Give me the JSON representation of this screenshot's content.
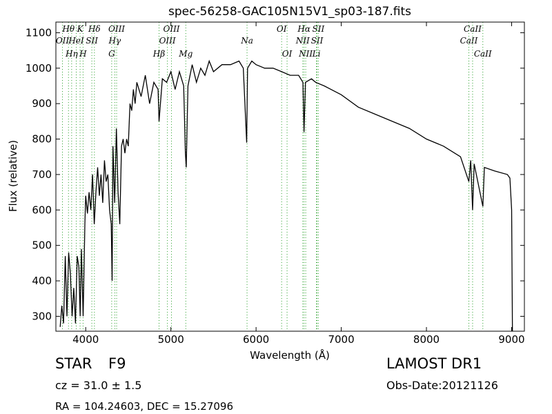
{
  "chart_data": {
    "type": "line",
    "title": "spec-56258-GAC105N15V1_sp03-187.fits",
    "x_label": "Wavelength (Å)",
    "y_label": "Flux (relative)",
    "xlim": [
      3650,
      9150
    ],
    "ylim": [
      258,
      1130
    ],
    "xticks": [
      4000,
      5000,
      6000,
      7000,
      8000,
      9000
    ],
    "yticks": [
      300,
      400,
      500,
      600,
      700,
      800,
      900,
      1000,
      1100
    ],
    "color": "#000000",
    "line_color": "#2ca02c",
    "x": [
      3700,
      3720,
      3740,
      3760,
      3780,
      3800,
      3820,
      3840,
      3860,
      3880,
      3900,
      3920,
      3935,
      3950,
      3970,
      3990,
      4000,
      4020,
      4040,
      4060,
      4080,
      4100,
      4120,
      4140,
      4160,
      4180,
      4200,
      4220,
      4240,
      4260,
      4280,
      4300,
      4310,
      4320,
      4340,
      4360,
      4380,
      4400,
      4420,
      4440,
      4460,
      4480,
      4500,
      4520,
      4540,
      4560,
      4580,
      4600,
      4650,
      4700,
      4750,
      4800,
      4850,
      4861,
      4900,
      4950,
      5000,
      5050,
      5100,
      5150,
      5170,
      5180,
      5200,
      5250,
      5300,
      5350,
      5400,
      5450,
      5500,
      5600,
      5700,
      5800,
      5850,
      5890,
      5900,
      5950,
      6000,
      6100,
      6200,
      6300,
      6400,
      6500,
      6550,
      6563,
      6580,
      6650,
      6700,
      6800,
      7000,
      7200,
      7400,
      7600,
      7800,
      8000,
      8200,
      8400,
      8498,
      8520,
      8542,
      8560,
      8662,
      8680,
      8800,
      8950,
      8980,
      9000,
      9010
    ],
    "values": [
      270,
      330,
      280,
      470,
      300,
      480,
      420,
      300,
      380,
      280,
      470,
      440,
      300,
      490,
      300,
      560,
      640,
      590,
      650,
      600,
      700,
      560,
      650,
      720,
      640,
      700,
      620,
      740,
      680,
      700,
      600,
      560,
      400,
      780,
      620,
      830,
      650,
      560,
      780,
      800,
      760,
      800,
      780,
      900,
      880,
      940,
      900,
      960,
      920,
      980,
      900,
      960,
      940,
      850,
      970,
      960,
      990,
      940,
      990,
      950,
      760,
      720,
      950,
      1010,
      960,
      1000,
      980,
      1020,
      990,
      1010,
      1010,
      1020,
      1000,
      790,
      1000,
      1020,
      1010,
      1000,
      1000,
      990,
      980,
      980,
      960,
      820,
      960,
      970,
      960,
      950,
      925,
      890,
      870,
      850,
      830,
      800,
      780,
      750,
      680,
      740,
      600,
      730,
      610,
      720,
      710,
      700,
      690,
      600,
      250
    ],
    "spectral_lines": [
      {
        "label": "OII",
        "wavelength": 3727
      },
      {
        "label": "Hθ",
        "wavelength": 3798
      },
      {
        "label": "Hη",
        "wavelength": 3835
      },
      {
        "label": "HeI",
        "wavelength": 3889
      },
      {
        "label": "K",
        "wavelength": 3934
      },
      {
        "label": "H",
        "wavelength": 3969
      },
      {
        "label": "SII",
        "wavelength": 4072
      },
      {
        "label": "Hδ",
        "wavelength": 4102
      },
      {
        "label": "G",
        "wavelength": 4305
      },
      {
        "label": "Hγ",
        "wavelength": 4341
      },
      {
        "label": "OIII",
        "wavelength": 4363
      },
      {
        "label": "Hβ",
        "wavelength": 4861
      },
      {
        "label": "OIII",
        "wavelength": 4959
      },
      {
        "label": "OIII",
        "wavelength": 5007
      },
      {
        "label": "Mg",
        "wavelength": 5175
      },
      {
        "label": "Na",
        "wavelength": 5894
      },
      {
        "label": "OI",
        "wavelength": 6300
      },
      {
        "label": "OI",
        "wavelength": 6364
      },
      {
        "label": "NII",
        "wavelength": 6548
      },
      {
        "label": "Hα",
        "wavelength": 6563
      },
      {
        "label": "NII",
        "wavelength": 6583
      },
      {
        "label": "SII",
        "wavelength": 6716
      },
      {
        "label": "SII",
        "wavelength": 6731
      },
      {
        "label": "Li",
        "wavelength": 6708
      },
      {
        "label": "CaII",
        "wavelength": 8498
      },
      {
        "label": "CaII",
        "wavelength": 8542
      },
      {
        "label": "CaII",
        "wavelength": 8662
      }
    ],
    "annotations": {
      "class": "STAR",
      "subclass": "F9",
      "survey": "LAMOST DR1",
      "redshift": "cz = 31.0 ± 1.5",
      "obs_date": "Obs-Date:20121126",
      "coordinates": "RA = 104.24603, DEC = 15.27096"
    }
  }
}
